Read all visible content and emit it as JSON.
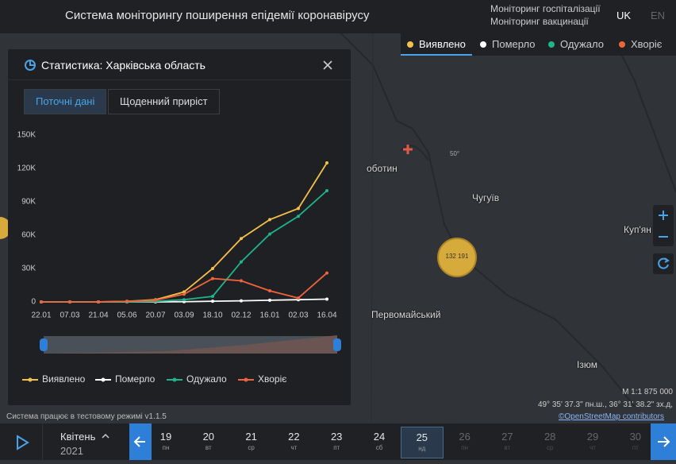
{
  "header": {
    "title": "Система моніторингу поширення епідемії коронавірусу",
    "links": [
      "Моніторинг госпіталізації",
      "Моніторинг вакцинації"
    ],
    "langs": [
      "UK",
      "EN"
    ]
  },
  "map_legend": [
    {
      "label": "Виявлено",
      "color": "#f5c04a"
    },
    {
      "label": "Померло",
      "color": "#ffffff"
    },
    {
      "label": "Одужало",
      "color": "#1fb58a"
    },
    {
      "label": "Хворіє",
      "color": "#f0643c"
    }
  ],
  "map": {
    "places": [
      "оботин",
      "Чугуїв",
      "Куп'ян",
      "Первомайський",
      "Ізюм"
    ],
    "graticule": "50°",
    "cluster": "132 191",
    "scale": "М 1:1 875 000",
    "coords": "49° 35' 37.3\" пн.ш., 36° 31' 38.2\" зх.д,",
    "attribution": "©OpenStreetMap contributors"
  },
  "panel": {
    "title": "Статистика: Харківська область",
    "tabs": [
      "Поточні дані",
      "Щоденний приріст"
    ],
    "chart": {
      "type": "line",
      "categories": [
        "22.01",
        "07.03",
        "21.04",
        "05.06",
        "20.07",
        "03.09",
        "18.10",
        "02.12",
        "16.01",
        "02.03",
        "16.04"
      ],
      "series": [
        {
          "name": "Виявлено",
          "color": "#f5c04a",
          "values": [
            0,
            0,
            0,
            500,
            2000,
            9000,
            30000,
            57000,
            74000,
            84000,
            125000
          ]
        },
        {
          "name": "Померло",
          "color": "#ffffff",
          "values": [
            0,
            0,
            0,
            0,
            0,
            200,
            600,
            1000,
            1500,
            2000,
            2500
          ]
        },
        {
          "name": "Одужало",
          "color": "#1fb58a",
          "values": [
            0,
            0,
            0,
            0,
            500,
            2000,
            5000,
            36000,
            61000,
            77000,
            100000
          ]
        },
        {
          "name": "Хворіє",
          "color": "#f0643c",
          "values": [
            0,
            0,
            0,
            500,
            1500,
            7000,
            21000,
            19000,
            10000,
            3500,
            26000
          ]
        }
      ],
      "ylim": [
        0,
        150000
      ],
      "yticks": [
        0,
        {
          "value": 30000,
          "label": "30K"
        },
        {
          "value": 60000,
          "label": "60K"
        },
        {
          "value": 90000,
          "label": "90K"
        },
        {
          "value": 120000,
          "label": "120K"
        },
        {
          "value": 150000,
          "label": "150K"
        }
      ],
      "grid": false
    }
  },
  "status": "Система працює в тестовому режимі v1.1.5",
  "timeline": {
    "month": "Квітень",
    "year": 2021,
    "days": [
      {
        "day": 19,
        "wd": "пн"
      },
      {
        "day": 20,
        "wd": "вт"
      },
      {
        "day": 21,
        "wd": "ср"
      },
      {
        "day": 22,
        "wd": "чт"
      },
      {
        "day": 23,
        "wd": "пт"
      },
      {
        "day": 24,
        "wd": "сб"
      },
      {
        "day": 25,
        "wd": "нд"
      },
      {
        "day": 26,
        "wd": "пн"
      },
      {
        "day": 27,
        "wd": "вт"
      },
      {
        "day": 28,
        "wd": "ср"
      },
      {
        "day": 29,
        "wd": "чт"
      },
      {
        "day": 30,
        "wd": "пт"
      }
    ]
  }
}
